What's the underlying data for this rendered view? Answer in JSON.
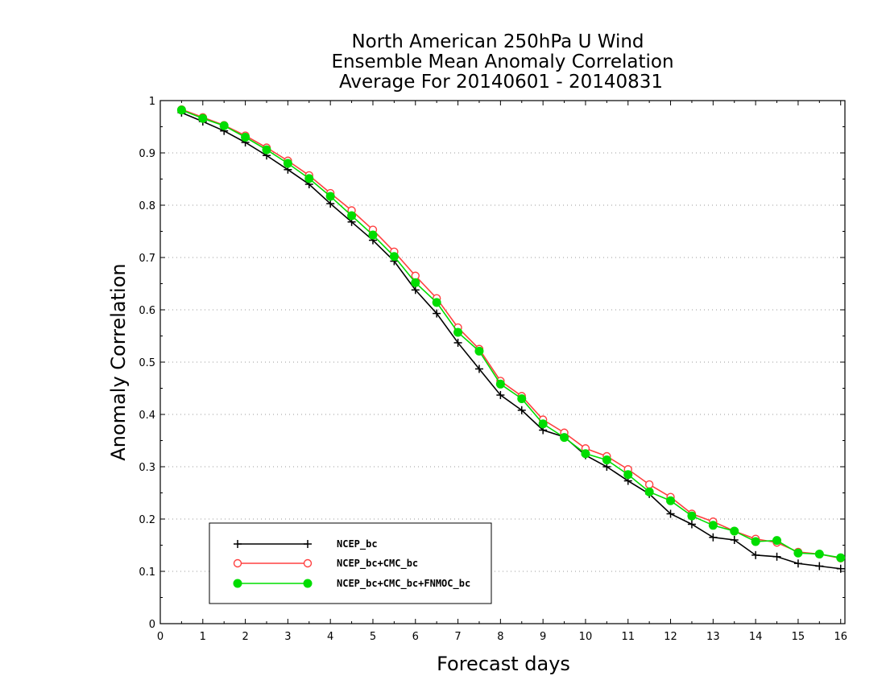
{
  "chart_data": {
    "type": "line",
    "title": [
      "North American 250hPa U Wind",
      "Ensemble Mean Anomaly Correlation",
      "Average For 20140601 - 20140831"
    ],
    "xlabel": "Forecast days",
    "ylabel": "Anomaly Correlation",
    "xlim": [
      0,
      16.1
    ],
    "ylim": [
      0,
      1
    ],
    "xticks": [
      "0",
      "1",
      "2",
      "3",
      "4",
      "5",
      "6",
      "7",
      "8",
      "9",
      "10",
      "11",
      "12",
      "13",
      "14",
      "15",
      "16"
    ],
    "yticks": [
      "0",
      "0.1",
      "0.2",
      "0.3",
      "0.4",
      "0.5",
      "0.6",
      "0.7",
      "0.8",
      "0.9",
      "1"
    ],
    "grid": "horizontal dotted",
    "legend_position": "bottom-left",
    "x": [
      0.5,
      1,
      1.5,
      2,
      2.5,
      3,
      3.5,
      4,
      4.5,
      5,
      5.5,
      6,
      6.5,
      7,
      7.5,
      8,
      8.5,
      9,
      9.5,
      10,
      10.5,
      11,
      11.5,
      12,
      12.5,
      13,
      13.5,
      14,
      14.5,
      15,
      15.5,
      16
    ],
    "series": [
      {
        "name": "NCEP_bc",
        "color": "#000000",
        "marker": "plus",
        "values": [
          0.977,
          0.96,
          0.942,
          0.92,
          0.895,
          0.868,
          0.84,
          0.803,
          0.768,
          0.733,
          0.693,
          0.638,
          0.593,
          0.537,
          0.487,
          0.437,
          0.408,
          0.37,
          0.357,
          0.322,
          0.3,
          0.273,
          0.248,
          0.21,
          0.19,
          0.165,
          0.16,
          0.131,
          0.128,
          0.115,
          0.11,
          0.105
        ]
      },
      {
        "name": "NCEP_bc+CMC_bc",
        "color": "#ff4040",
        "marker": "open-circle",
        "values": [
          0.983,
          0.968,
          0.953,
          0.933,
          0.91,
          0.885,
          0.857,
          0.823,
          0.79,
          0.753,
          0.711,
          0.665,
          0.622,
          0.566,
          0.525,
          0.464,
          0.435,
          0.39,
          0.365,
          0.335,
          0.32,
          0.295,
          0.266,
          0.242,
          0.21,
          0.195,
          0.177,
          0.162,
          0.155,
          0.137,
          0.133,
          0.125
        ]
      },
      {
        "name": "NCEP_bc+CMC_bc+FNMOC_bc",
        "color": "#00dd00",
        "marker": "filled-circle",
        "values": [
          0.982,
          0.966,
          0.952,
          0.93,
          0.906,
          0.88,
          0.851,
          0.817,
          0.78,
          0.743,
          0.702,
          0.652,
          0.614,
          0.557,
          0.521,
          0.458,
          0.43,
          0.382,
          0.356,
          0.325,
          0.313,
          0.285,
          0.252,
          0.235,
          0.206,
          0.188,
          0.177,
          0.157,
          0.159,
          0.135,
          0.133,
          0.126
        ]
      }
    ]
  }
}
